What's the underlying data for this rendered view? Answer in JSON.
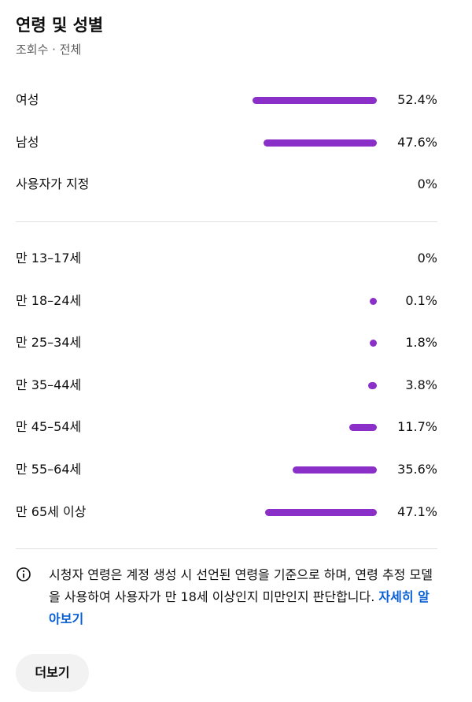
{
  "header": {
    "title": "연령 및 성별",
    "subtitle": "조회수 · 전체"
  },
  "gender": [
    {
      "label": "여성",
      "value": 52.4,
      "value_label": "52.4%"
    },
    {
      "label": "남성",
      "value": 47.6,
      "value_label": "47.6%"
    },
    {
      "label": "사용자가 지정",
      "value": 0,
      "value_label": "0%"
    }
  ],
  "age": [
    {
      "label": "만 13–17세",
      "value": 0,
      "value_label": "0%"
    },
    {
      "label": "만 18–24세",
      "value": 0.1,
      "value_label": "0.1%"
    },
    {
      "label": "만 25–34세",
      "value": 1.8,
      "value_label": "1.8%"
    },
    {
      "label": "만 35–44세",
      "value": 3.8,
      "value_label": "3.8%"
    },
    {
      "label": "만 45–54세",
      "value": 11.7,
      "value_label": "11.7%"
    },
    {
      "label": "만 55–64세",
      "value": 35.6,
      "value_label": "35.6%"
    },
    {
      "label": "만 65세 이상",
      "value": 47.1,
      "value_label": "47.1%"
    }
  ],
  "note": {
    "text": "시청자 연령은 계정 생성 시 선언된 연령을 기준으로 하며, 연령 추정 모델을 사용하여 사용자가 만 18세 이상인지 미만인지 판단합니다.",
    "link": "자세히 알아보기"
  },
  "button": "더보기"
}
